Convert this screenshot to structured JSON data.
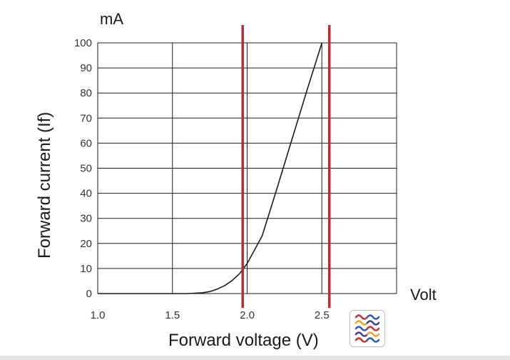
{
  "chart_data": {
    "type": "line",
    "xlabel": "Forward voltage (V)",
    "ylabel": "Forward current (If)",
    "x_unit": "Volt",
    "y_unit": "mA",
    "xlim": [
      1.0,
      3.0
    ],
    "ylim": [
      0,
      100
    ],
    "x_ticks": [
      "1.0",
      "1.5",
      "2.0",
      "2.5"
    ],
    "y_ticks": [
      "0",
      "10",
      "20",
      "30",
      "40",
      "50",
      "60",
      "70",
      "80",
      "90",
      "100"
    ],
    "grid": true,
    "series": [
      {
        "color": "#1a1a1a",
        "x": [
          1.0,
          1.5,
          1.6,
          1.7,
          1.75,
          1.8,
          1.85,
          1.9,
          1.95,
          2.0,
          2.05,
          2.1,
          2.2,
          2.3,
          2.4,
          2.5
        ],
        "y": [
          0,
          0,
          0,
          0.3,
          0.8,
          1.8,
          3.2,
          5.2,
          8.0,
          12.0,
          17.5,
          23.0,
          42.0,
          61.5,
          81.0,
          100
        ]
      }
    ],
    "reference_lines": [
      {
        "x": 1.97,
        "color": "#b32d35"
      },
      {
        "x": 2.55,
        "color": "#b32d35"
      }
    ]
  },
  "logo": {
    "name": "multicolor-loops-logo"
  }
}
